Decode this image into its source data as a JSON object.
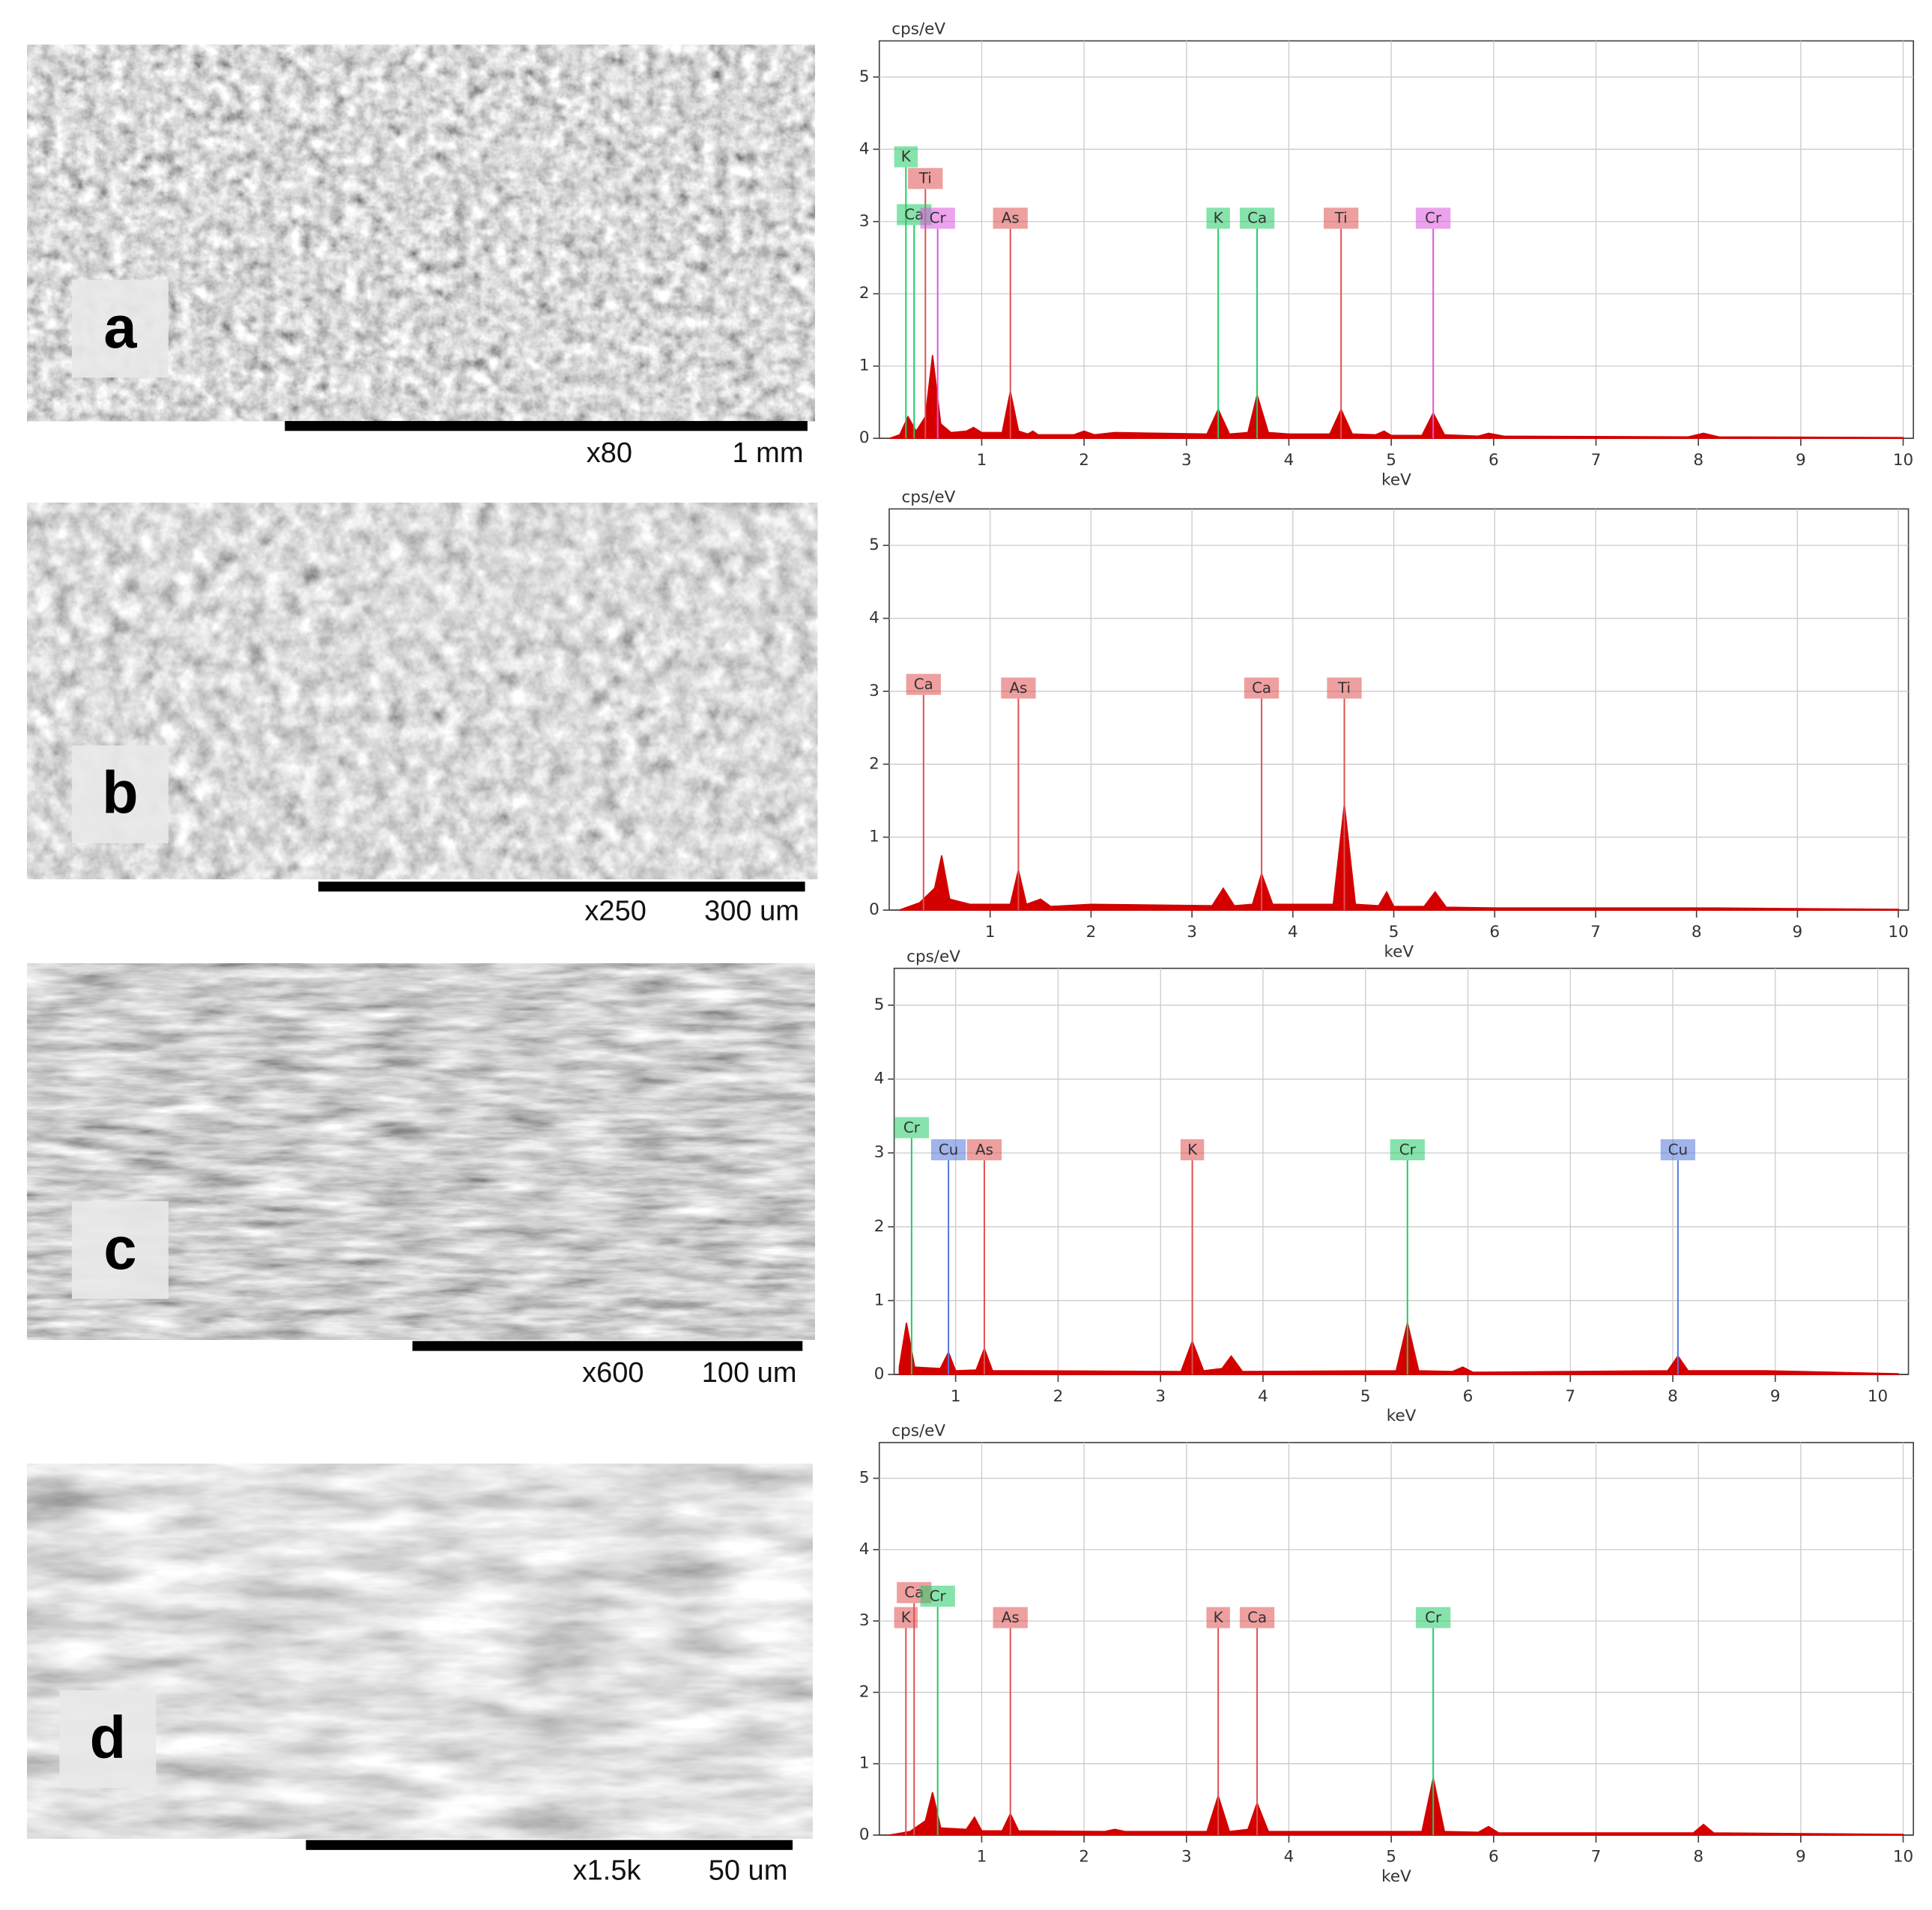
{
  "images": [
    {
      "label": "a",
      "magnification": "x80",
      "scale": "1 mm"
    },
    {
      "label": "b",
      "magnification": "x250",
      "scale": "300 um"
    },
    {
      "label": "c",
      "magnification": "x600",
      "scale": "100 um"
    },
    {
      "label": "d",
      "magnification": "x1.5k",
      "scale": "50 um"
    }
  ],
  "chart_data": [
    {
      "type": "area",
      "y_label": "cps/eV",
      "x_label": "keV",
      "xlim": [
        0,
        10.1
      ],
      "ylim": [
        0,
        5.5
      ],
      "xticks": [
        1,
        2,
        3,
        4,
        5,
        6,
        7,
        8,
        9,
        10
      ],
      "yticks": [
        0,
        1,
        2,
        3,
        4,
        5
      ],
      "grid": true,
      "color": "#d40000",
      "x": [
        0.1,
        0.2,
        0.28,
        0.36,
        0.45,
        0.52,
        0.6,
        0.7,
        0.85,
        0.92,
        1.0,
        1.2,
        1.28,
        1.36,
        1.45,
        1.5,
        1.55,
        1.9,
        2.0,
        2.1,
        2.3,
        3.2,
        3.31,
        3.42,
        3.6,
        3.69,
        3.8,
        4.0,
        4.4,
        4.51,
        4.62,
        4.85,
        4.93,
        5.0,
        5.3,
        5.41,
        5.52,
        5.85,
        5.95,
        6.1,
        7.9,
        8.05,
        8.2,
        10.0
      ],
      "values": [
        0,
        0.05,
        0.3,
        0.1,
        0.3,
        1.15,
        0.2,
        0.08,
        0.1,
        0.15,
        0.08,
        0.08,
        0.65,
        0.1,
        0.06,
        0.1,
        0.05,
        0.05,
        0.1,
        0.05,
        0.08,
        0.06,
        0.4,
        0.06,
        0.08,
        0.6,
        0.08,
        0.06,
        0.06,
        0.4,
        0.06,
        0.05,
        0.1,
        0.04,
        0.04,
        0.35,
        0.05,
        0.03,
        0.07,
        0.03,
        0.02,
        0.07,
        0.02,
        0.01
      ],
      "markers": [
        {
          "label": "K",
          "x": 0.26,
          "y": 3.75,
          "color": "#22cc66"
        },
        {
          "label": "Ti",
          "x": 0.45,
          "y": 3.45,
          "color": "#e05050"
        },
        {
          "label": "Ca",
          "x": 0.34,
          "y": 2.95,
          "color": "#22cc66"
        },
        {
          "label": "Cr",
          "x": 0.57,
          "y": 2.9,
          "color": "#dd55dd"
        },
        {
          "label": "As",
          "x": 1.28,
          "y": 2.9,
          "color": "#e05050"
        },
        {
          "label": "K",
          "x": 3.31,
          "y": 2.9,
          "color": "#22cc66"
        },
        {
          "label": "Ca",
          "x": 3.69,
          "y": 2.9,
          "color": "#22cc66"
        },
        {
          "label": "Ti",
          "x": 4.51,
          "y": 2.9,
          "color": "#e05050"
        },
        {
          "label": "Cr",
          "x": 5.41,
          "y": 2.9,
          "color": "#dd55dd"
        }
      ]
    },
    {
      "type": "area",
      "y_label": "cps/eV",
      "x_label": "keV",
      "xlim": [
        0,
        10.1
      ],
      "ylim": [
        0,
        5.5
      ],
      "xticks": [
        1,
        2,
        3,
        4,
        5,
        6,
        7,
        8,
        9,
        10
      ],
      "yticks": [
        0,
        1,
        2,
        3,
        4,
        5
      ],
      "grid": true,
      "color": "#d40000",
      "x": [
        0.1,
        0.3,
        0.45,
        0.52,
        0.6,
        0.8,
        1.2,
        1.28,
        1.36,
        1.5,
        1.6,
        2.0,
        3.2,
        3.31,
        3.42,
        3.6,
        3.69,
        3.8,
        4.4,
        4.51,
        4.62,
        4.85,
        4.93,
        5.0,
        5.3,
        5.41,
        5.52,
        6.0,
        8.05,
        10.0
      ],
      "values": [
        0,
        0.1,
        0.3,
        0.75,
        0.15,
        0.08,
        0.08,
        0.55,
        0.08,
        0.15,
        0.05,
        0.08,
        0.06,
        0.3,
        0.06,
        0.08,
        0.5,
        0.08,
        0.08,
        1.45,
        0.08,
        0.06,
        0.25,
        0.05,
        0.05,
        0.25,
        0.04,
        0.03,
        0.03,
        0.01
      ],
      "markers": [
        {
          "label": "Ca",
          "x": 0.34,
          "y": 2.95,
          "color": "#e05050"
        },
        {
          "label": "As",
          "x": 1.28,
          "y": 2.9,
          "color": "#e05050"
        },
        {
          "label": "Ca",
          "x": 3.69,
          "y": 2.9,
          "color": "#e05050"
        },
        {
          "label": "Ti",
          "x": 4.51,
          "y": 2.9,
          "color": "#e05050"
        }
      ]
    },
    {
      "type": "area",
      "y_label": "cps/eV",
      "x_label": "keV",
      "xlim": [
        0.4,
        10.3
      ],
      "ylim": [
        0,
        5.5
      ],
      "xticks": [
        1,
        2,
        3,
        4,
        5,
        6,
        7,
        8,
        9,
        10
      ],
      "yticks": [
        0,
        1,
        2,
        3,
        4,
        5
      ],
      "grid": true,
      "color": "#d40000",
      "x": [
        0.45,
        0.52,
        0.6,
        0.85,
        0.93,
        1.0,
        1.2,
        1.28,
        1.36,
        1.6,
        3.2,
        3.31,
        3.42,
        3.6,
        3.69,
        3.8,
        5.3,
        5.41,
        5.52,
        5.85,
        5.95,
        6.05,
        7.95,
        8.05,
        8.15,
        8.9,
        10.2
      ],
      "values": [
        0.1,
        0.7,
        0.1,
        0.08,
        0.3,
        0.05,
        0.06,
        0.35,
        0.05,
        0.05,
        0.04,
        0.45,
        0.05,
        0.08,
        0.25,
        0.04,
        0.05,
        0.7,
        0.05,
        0.04,
        0.1,
        0.03,
        0.05,
        0.25,
        0.05,
        0.05,
        0.01
      ],
      "markers": [
        {
          "label": "Cr",
          "x": 0.57,
          "y": 3.2,
          "color": "#22cc66"
        },
        {
          "label": "Cu",
          "x": 0.93,
          "y": 2.9,
          "color": "#5577dd"
        },
        {
          "label": "As",
          "x": 1.28,
          "y": 2.9,
          "color": "#e05050"
        },
        {
          "label": "K",
          "x": 3.31,
          "y": 2.9,
          "color": "#e05050"
        },
        {
          "label": "Cr",
          "x": 5.41,
          "y": 2.9,
          "color": "#22cc66"
        },
        {
          "label": "Cu",
          "x": 8.05,
          "y": 2.9,
          "color": "#5577dd"
        }
      ]
    },
    {
      "type": "area",
      "y_label": "cps/eV",
      "x_label": "keV",
      "xlim": [
        0,
        10.1
      ],
      "ylim": [
        0,
        5.5
      ],
      "xticks": [
        1,
        2,
        3,
        4,
        5,
        6,
        7,
        8,
        9,
        10
      ],
      "yticks": [
        0,
        1,
        2,
        3,
        4,
        5
      ],
      "grid": true,
      "color": "#d40000",
      "x": [
        0.1,
        0.3,
        0.45,
        0.52,
        0.6,
        0.85,
        0.93,
        1.0,
        1.2,
        1.28,
        1.36,
        2.2,
        2.3,
        2.4,
        3.2,
        3.31,
        3.42,
        3.6,
        3.69,
        3.8,
        5.3,
        5.41,
        5.52,
        5.85,
        5.95,
        6.05,
        7.95,
        8.05,
        8.15,
        10.0
      ],
      "values": [
        0,
        0.05,
        0.2,
        0.6,
        0.1,
        0.08,
        0.25,
        0.06,
        0.06,
        0.3,
        0.06,
        0.05,
        0.08,
        0.05,
        0.05,
        0.55,
        0.05,
        0.08,
        0.45,
        0.05,
        0.05,
        0.8,
        0.05,
        0.04,
        0.12,
        0.03,
        0.03,
        0.15,
        0.03,
        0.01
      ],
      "markers": [
        {
          "label": "Ca",
          "x": 0.34,
          "y": 3.25,
          "color": "#e05050"
        },
        {
          "label": "K",
          "x": 0.26,
          "y": 2.9,
          "color": "#e05050"
        },
        {
          "label": "Cr",
          "x": 0.57,
          "y": 3.2,
          "color": "#22cc66"
        },
        {
          "label": "As",
          "x": 1.28,
          "y": 2.9,
          "color": "#e05050"
        },
        {
          "label": "K",
          "x": 3.31,
          "y": 2.9,
          "color": "#e05050"
        },
        {
          "label": "Ca",
          "x": 3.69,
          "y": 2.9,
          "color": "#e05050"
        },
        {
          "label": "Cr",
          "x": 5.41,
          "y": 2.9,
          "color": "#22cc66"
        }
      ]
    }
  ]
}
